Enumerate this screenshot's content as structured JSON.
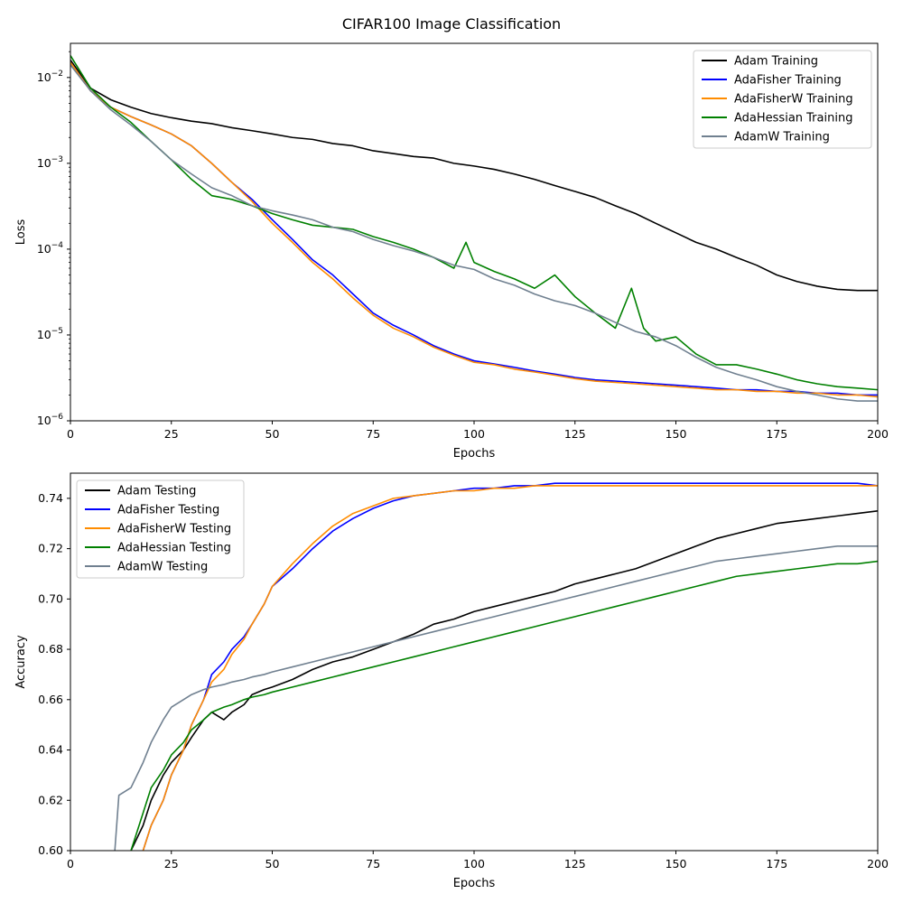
{
  "figure": {
    "title": "CIFAR100 Image Classification"
  },
  "chart_data": [
    {
      "type": "line",
      "ylog": true,
      "xlabel": "Epochs",
      "ylabel": "Loss",
      "xlim": [
        0,
        200
      ],
      "ylim": [
        1e-06,
        0.025
      ],
      "xticks": [
        0,
        25,
        50,
        75,
        100,
        125,
        150,
        175,
        200
      ],
      "xtick_labels": [
        "0",
        "25",
        "50",
        "75",
        "100",
        "125",
        "150",
        "175",
        "200"
      ],
      "yticks": [
        1e-06,
        1e-05,
        0.0001,
        0.001,
        0.01
      ],
      "ytick_bases": [
        "10",
        "10",
        "10",
        "10",
        "10"
      ],
      "ytick_exps": [
        "−6",
        "−5",
        "−4",
        "−3",
        "−2"
      ],
      "legend_position": "upper right",
      "grid": false,
      "series": [
        {
          "name": "Adam Training",
          "color": "#000000",
          "x": [
            0,
            5,
            10,
            15,
            20,
            25,
            30,
            35,
            40,
            45,
            50,
            55,
            60,
            65,
            70,
            75,
            80,
            85,
            90,
            95,
            100,
            105,
            110,
            115,
            120,
            125,
            130,
            135,
            140,
            145,
            150,
            155,
            160,
            165,
            170,
            175,
            180,
            185,
            190,
            195,
            200
          ],
          "y": [
            0.016,
            0.0075,
            0.0055,
            0.0045,
            0.0038,
            0.0034,
            0.0031,
            0.0029,
            0.0026,
            0.0024,
            0.0022,
            0.002,
            0.0019,
            0.0017,
            0.0016,
            0.0014,
            0.0013,
            0.0012,
            0.00115,
            0.001,
            0.00093,
            0.00085,
            0.00075,
            0.00065,
            0.00055,
            0.00047,
            0.0004,
            0.00032,
            0.00026,
            0.0002,
            0.000155,
            0.00012,
            0.0001,
            8e-05,
            6.5e-05,
            5e-05,
            4.2e-05,
            3.7e-05,
            3.4e-05,
            3.3e-05,
            3.3e-05
          ]
        },
        {
          "name": "AdaFisher Training",
          "color": "#0000ff",
          "x": [
            0,
            5,
            10,
            15,
            20,
            25,
            30,
            35,
            40,
            45,
            50,
            55,
            60,
            65,
            70,
            75,
            80,
            85,
            90,
            95,
            100,
            105,
            110,
            115,
            120,
            125,
            130,
            135,
            140,
            145,
            150,
            155,
            160,
            165,
            170,
            175,
            180,
            185,
            190,
            195,
            200
          ],
          "y": [
            0.015,
            0.007,
            0.0045,
            0.0035,
            0.0028,
            0.0022,
            0.0016,
            0.001,
            0.0006,
            0.00038,
            0.00022,
            0.00013,
            7.5e-05,
            5e-05,
            3e-05,
            1.8e-05,
            1.3e-05,
            1e-05,
            7.5e-06,
            6e-06,
            5e-06,
            4.6e-06,
            4.2e-06,
            3.8e-06,
            3.5e-06,
            3.2e-06,
            3e-06,
            2.9e-06,
            2.8e-06,
            2.7e-06,
            2.6e-06,
            2.5e-06,
            2.4e-06,
            2.3e-06,
            2.3e-06,
            2.2e-06,
            2.2e-06,
            2.1e-06,
            2.1e-06,
            2e-06,
            2e-06
          ]
        },
        {
          "name": "AdaFisherW Training",
          "color": "#ff8c00",
          "x": [
            0,
            5,
            10,
            15,
            20,
            25,
            30,
            35,
            40,
            45,
            50,
            55,
            60,
            65,
            70,
            75,
            80,
            85,
            90,
            95,
            100,
            105,
            110,
            115,
            120,
            125,
            130,
            135,
            140,
            145,
            150,
            155,
            160,
            165,
            170,
            175,
            180,
            185,
            190,
            195,
            200
          ],
          "y": [
            0.015,
            0.007,
            0.0045,
            0.0035,
            0.0028,
            0.0022,
            0.0016,
            0.001,
            0.0006,
            0.00036,
            0.0002,
            0.00012,
            7e-05,
            4.5e-05,
            2.7e-05,
            1.7e-05,
            1.2e-05,
            9.5e-06,
            7.2e-06,
            5.8e-06,
            4.8e-06,
            4.5e-06,
            4e-06,
            3.7e-06,
            3.4e-06,
            3.1e-06,
            2.9e-06,
            2.8e-06,
            2.7e-06,
            2.6e-06,
            2.5e-06,
            2.4e-06,
            2.3e-06,
            2.3e-06,
            2.2e-06,
            2.2e-06,
            2.1e-06,
            2.1e-06,
            2e-06,
            2e-06,
            1.9e-06
          ]
        },
        {
          "name": "AdaHessian Training",
          "color": "#008000",
          "x": [
            0,
            5,
            10,
            15,
            20,
            25,
            30,
            35,
            40,
            45,
            50,
            55,
            60,
            65,
            70,
            75,
            80,
            85,
            90,
            95,
            98,
            100,
            105,
            110,
            115,
            120,
            125,
            130,
            135,
            139,
            142,
            145,
            150,
            155,
            160,
            165,
            170,
            175,
            180,
            185,
            190,
            195,
            200
          ],
          "y": [
            0.018,
            0.0075,
            0.0045,
            0.003,
            0.0018,
            0.0011,
            0.00065,
            0.00042,
            0.00038,
            0.00032,
            0.00026,
            0.00022,
            0.00019,
            0.00018,
            0.00017,
            0.00014,
            0.00012,
            0.0001,
            8e-05,
            6e-05,
            0.00012,
            7e-05,
            5.5e-05,
            4.5e-05,
            3.5e-05,
            5e-05,
            2.8e-05,
            1.8e-05,
            1.2e-05,
            3.5e-05,
            1.2e-05,
            8.5e-06,
            9.5e-06,
            6e-06,
            4.5e-06,
            4.5e-06,
            4e-06,
            3.5e-06,
            3e-06,
            2.7e-06,
            2.5e-06,
            2.4e-06,
            2.3e-06
          ]
        },
        {
          "name": "AdamW Training",
          "color": "#708090",
          "x": [
            0,
            5,
            10,
            15,
            20,
            25,
            30,
            35,
            40,
            45,
            50,
            55,
            60,
            65,
            70,
            75,
            80,
            85,
            90,
            95,
            100,
            105,
            110,
            115,
            120,
            125,
            130,
            135,
            140,
            145,
            150,
            155,
            160,
            165,
            170,
            175,
            180,
            185,
            190,
            195,
            200
          ],
          "y": [
            0.014,
            0.007,
            0.0042,
            0.0028,
            0.0018,
            0.0011,
            0.00075,
            0.00052,
            0.00042,
            0.00032,
            0.00028,
            0.00025,
            0.00022,
            0.00018,
            0.00016,
            0.00013,
            0.00011,
            9.5e-05,
            8e-05,
            6.5e-05,
            5.8e-05,
            4.5e-05,
            3.8e-05,
            3e-05,
            2.5e-05,
            2.2e-05,
            1.8e-05,
            1.4e-05,
            1.1e-05,
            9.5e-06,
            7.5e-06,
            5.5e-06,
            4.2e-06,
            3.5e-06,
            3e-06,
            2.5e-06,
            2.2e-06,
            2e-06,
            1.8e-06,
            1.7e-06,
            1.7e-06
          ]
        }
      ]
    },
    {
      "type": "line",
      "ylog": false,
      "xlabel": "Epochs",
      "ylabel": "Accuracy",
      "xlim": [
        0,
        200
      ],
      "ylim": [
        0.6,
        0.75
      ],
      "xticks": [
        0,
        25,
        50,
        75,
        100,
        125,
        150,
        175,
        200
      ],
      "xtick_labels": [
        "0",
        "25",
        "50",
        "75",
        "100",
        "125",
        "150",
        "175",
        "200"
      ],
      "yticks": [
        0.6,
        0.62,
        0.64,
        0.66,
        0.68,
        0.7,
        0.72,
        0.74
      ],
      "ytick_labels": [
        "0.60",
        "0.62",
        "0.64",
        "0.66",
        "0.68",
        "0.70",
        "0.72",
        "0.74"
      ],
      "legend_position": "upper left",
      "grid": false,
      "series": [
        {
          "name": "Adam Testing",
          "color": "#000000",
          "x": [
            15,
            18,
            20,
            23,
            25,
            28,
            30,
            33,
            35,
            38,
            40,
            43,
            45,
            48,
            50,
            55,
            60,
            65,
            70,
            75,
            80,
            85,
            90,
            95,
            100,
            105,
            110,
            115,
            120,
            125,
            130,
            135,
            140,
            145,
            150,
            155,
            160,
            165,
            170,
            175,
            180,
            185,
            190,
            195,
            200
          ],
          "y": [
            0.6,
            0.61,
            0.62,
            0.63,
            0.635,
            0.64,
            0.645,
            0.652,
            0.655,
            0.652,
            0.655,
            0.658,
            0.662,
            0.664,
            0.665,
            0.668,
            0.672,
            0.675,
            0.677,
            0.68,
            0.683,
            0.686,
            0.69,
            0.692,
            0.695,
            0.697,
            0.699,
            0.701,
            0.703,
            0.706,
            0.708,
            0.71,
            0.712,
            0.715,
            0.718,
            0.721,
            0.724,
            0.726,
            0.728,
            0.73,
            0.731,
            0.732,
            0.733,
            0.734,
            0.735
          ]
        },
        {
          "name": "AdaFisher Testing",
          "color": "#0000ff",
          "x": [
            18,
            20,
            23,
            25,
            28,
            30,
            33,
            35,
            38,
            40,
            43,
            45,
            48,
            50,
            55,
            60,
            65,
            70,
            75,
            80,
            85,
            90,
            95,
            100,
            105,
            110,
            115,
            120,
            125,
            130,
            135,
            140,
            145,
            150,
            155,
            160,
            165,
            170,
            175,
            180,
            185,
            190,
            195,
            200
          ],
          "y": [
            0.6,
            0.61,
            0.62,
            0.63,
            0.64,
            0.65,
            0.66,
            0.67,
            0.675,
            0.68,
            0.685,
            0.69,
            0.698,
            0.705,
            0.712,
            0.72,
            0.727,
            0.732,
            0.736,
            0.739,
            0.741,
            0.742,
            0.743,
            0.744,
            0.744,
            0.745,
            0.745,
            0.746,
            0.746,
            0.746,
            0.746,
            0.746,
            0.746,
            0.746,
            0.746,
            0.746,
            0.746,
            0.746,
            0.746,
            0.746,
            0.746,
            0.746,
            0.746,
            0.745
          ]
        },
        {
          "name": "AdaFisherW Testing",
          "color": "#ff8c00",
          "x": [
            18,
            20,
            23,
            25,
            28,
            30,
            33,
            35,
            38,
            40,
            43,
            45,
            48,
            50,
            55,
            60,
            65,
            70,
            75,
            80,
            85,
            90,
            95,
            100,
            105,
            110,
            115,
            120,
            125,
            130,
            135,
            140,
            145,
            150,
            155,
            160,
            165,
            170,
            175,
            180,
            185,
            190,
            195,
            200
          ],
          "y": [
            0.6,
            0.61,
            0.62,
            0.63,
            0.64,
            0.65,
            0.66,
            0.667,
            0.672,
            0.678,
            0.684,
            0.69,
            0.698,
            0.705,
            0.714,
            0.722,
            0.729,
            0.734,
            0.737,
            0.74,
            0.741,
            0.742,
            0.743,
            0.743,
            0.744,
            0.744,
            0.745,
            0.745,
            0.745,
            0.745,
            0.745,
            0.745,
            0.745,
            0.745,
            0.745,
            0.745,
            0.745,
            0.745,
            0.745,
            0.745,
            0.745,
            0.745,
            0.745,
            0.745
          ]
        },
        {
          "name": "AdaHessian Testing",
          "color": "#008000",
          "x": [
            15,
            18,
            20,
            23,
            25,
            28,
            30,
            33,
            35,
            38,
            40,
            43,
            45,
            48,
            50,
            55,
            60,
            65,
            70,
            75,
            80,
            85,
            90,
            95,
            100,
            105,
            110,
            115,
            120,
            125,
            130,
            135,
            140,
            145,
            150,
            155,
            160,
            165,
            170,
            175,
            180,
            185,
            190,
            195,
            200
          ],
          "y": [
            0.6,
            0.615,
            0.625,
            0.632,
            0.638,
            0.643,
            0.648,
            0.652,
            0.655,
            0.657,
            0.658,
            0.66,
            0.661,
            0.662,
            0.663,
            0.665,
            0.667,
            0.669,
            0.671,
            0.673,
            0.675,
            0.677,
            0.679,
            0.681,
            0.683,
            0.685,
            0.687,
            0.689,
            0.691,
            0.693,
            0.695,
            0.697,
            0.699,
            0.701,
            0.703,
            0.705,
            0.707,
            0.709,
            0.71,
            0.711,
            0.712,
            0.713,
            0.714,
            0.714,
            0.715
          ]
        },
        {
          "name": "AdamW Testing",
          "color": "#708090",
          "x": [
            11,
            12,
            15,
            18,
            20,
            23,
            25,
            28,
            30,
            33,
            35,
            38,
            40,
            43,
            45,
            48,
            50,
            55,
            60,
            65,
            70,
            75,
            80,
            85,
            90,
            95,
            100,
            105,
            110,
            115,
            120,
            125,
            130,
            135,
            140,
            145,
            150,
            155,
            160,
            165,
            170,
            175,
            180,
            185,
            190,
            195,
            200
          ],
          "y": [
            0.6,
            0.622,
            0.625,
            0.635,
            0.643,
            0.652,
            0.657,
            0.66,
            0.662,
            0.664,
            0.665,
            0.666,
            0.667,
            0.668,
            0.669,
            0.67,
            0.671,
            0.673,
            0.675,
            0.677,
            0.679,
            0.681,
            0.683,
            0.685,
            0.687,
            0.689,
            0.691,
            0.693,
            0.695,
            0.697,
            0.699,
            0.701,
            0.703,
            0.705,
            0.707,
            0.709,
            0.711,
            0.713,
            0.715,
            0.716,
            0.717,
            0.718,
            0.719,
            0.72,
            0.721,
            0.721,
            0.721
          ]
        }
      ]
    }
  ]
}
